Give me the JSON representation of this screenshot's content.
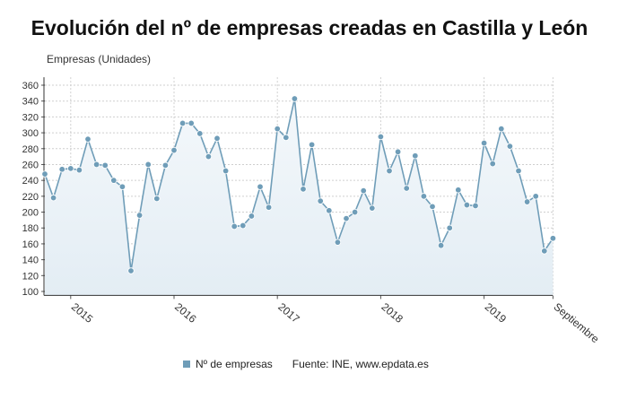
{
  "chart_data": {
    "type": "area",
    "title": "Evolución del nº de empresas creadas en Castilla y León",
    "ylabel": "Empresas (Unidades)",
    "xlabel": "",
    "x_tick_labels": [
      {
        "index": 3,
        "label": "2015"
      },
      {
        "index": 15,
        "label": "2016"
      },
      {
        "index": 27,
        "label": "2017"
      },
      {
        "index": 39,
        "label": "2018"
      },
      {
        "index": 51,
        "label": "2019"
      },
      {
        "index": 59,
        "label": "Septiembre"
      }
    ],
    "ylim": [
      95,
      370
    ],
    "y_ticks": [
      100,
      120,
      140,
      160,
      180,
      200,
      220,
      240,
      260,
      280,
      300,
      320,
      340,
      360
    ],
    "grid": true,
    "legend_position": "bottom",
    "series": [
      {
        "name": "Nº de empresas",
        "color": "#6f9db8",
        "values": [
          248,
          218,
          254,
          255,
          253,
          292,
          260,
          259,
          240,
          232,
          126,
          196,
          260,
          217,
          259,
          278,
          312,
          312,
          299,
          270,
          293,
          252,
          182,
          183,
          195,
          232,
          206,
          305,
          294,
          343,
          229,
          285,
          214,
          202,
          162,
          192,
          200,
          227,
          205,
          295,
          252,
          276,
          230,
          271,
          220,
          207,
          158,
          180,
          228,
          209,
          208,
          287,
          261,
          305,
          283,
          252,
          213,
          220,
          151,
          167
        ]
      }
    ],
    "source": "Fuente: INE, www.epdata.es"
  }
}
